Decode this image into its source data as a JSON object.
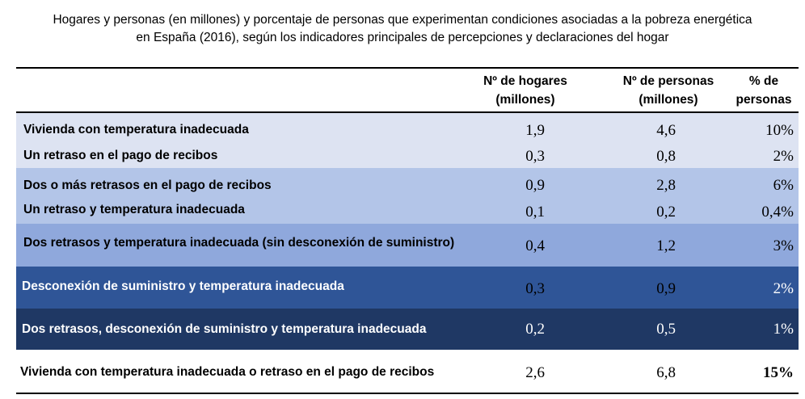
{
  "title": {
    "line1": "Hogares y personas (en millones) y porcentaje de personas que experimentan condiciones asociadas a la pobreza energética",
    "line2": "en España (2016), según los indicadores principales de percepciones y declaraciones del hogar"
  },
  "columns": {
    "hogares_l1": "Nº de hogares",
    "hogares_l2": "(millones)",
    "personas_l1": "Nº de personas",
    "personas_l2": "(millones)",
    "pct_l1": "% de",
    "pct_l2": "personas"
  },
  "rows": [
    {
      "label": "Vivienda con temperatura inadecuada",
      "hogares": "1,9",
      "personas": "4,6",
      "pct": "10%"
    },
    {
      "label": "Un retraso en el pago de recibos",
      "hogares": "0,3",
      "personas": "0,8",
      "pct": "2%"
    },
    {
      "label": "Dos o más retrasos en el pago de recibos",
      "hogares": "0,9",
      "personas": "2,8",
      "pct": "6%"
    },
    {
      "label": "Un retraso y temperatura inadecuada",
      "hogares": "0,1",
      "personas": "0,2",
      "pct": "0,4%"
    },
    {
      "label": "Dos retrasos y temperatura inadecuada (sin desconexión de suministro)",
      "hogares": "0,4",
      "personas": "1,2",
      "pct": "3%"
    },
    {
      "label": "Desconexión de suministro y temperatura inadecuada",
      "hogares": "0,3",
      "personas": "0,9",
      "pct": "2%"
    },
    {
      "label": "Dos retrasos, desconexión de suministro y temperatura inadecuada",
      "hogares": "0,2",
      "personas": "0,5",
      "pct": "1%"
    }
  ],
  "total": {
    "label": "Vivienda con temperatura inadecuada o retraso en el pago de recibos",
    "hogares": "2,6",
    "personas": "6,8",
    "pct": "15%"
  },
  "colors": {
    "band1": "#dde3f2",
    "band2": "#b3c5e8",
    "band3": "#8fa8dc",
    "band4": "#2f5597",
    "band5": "#1f3864"
  }
}
